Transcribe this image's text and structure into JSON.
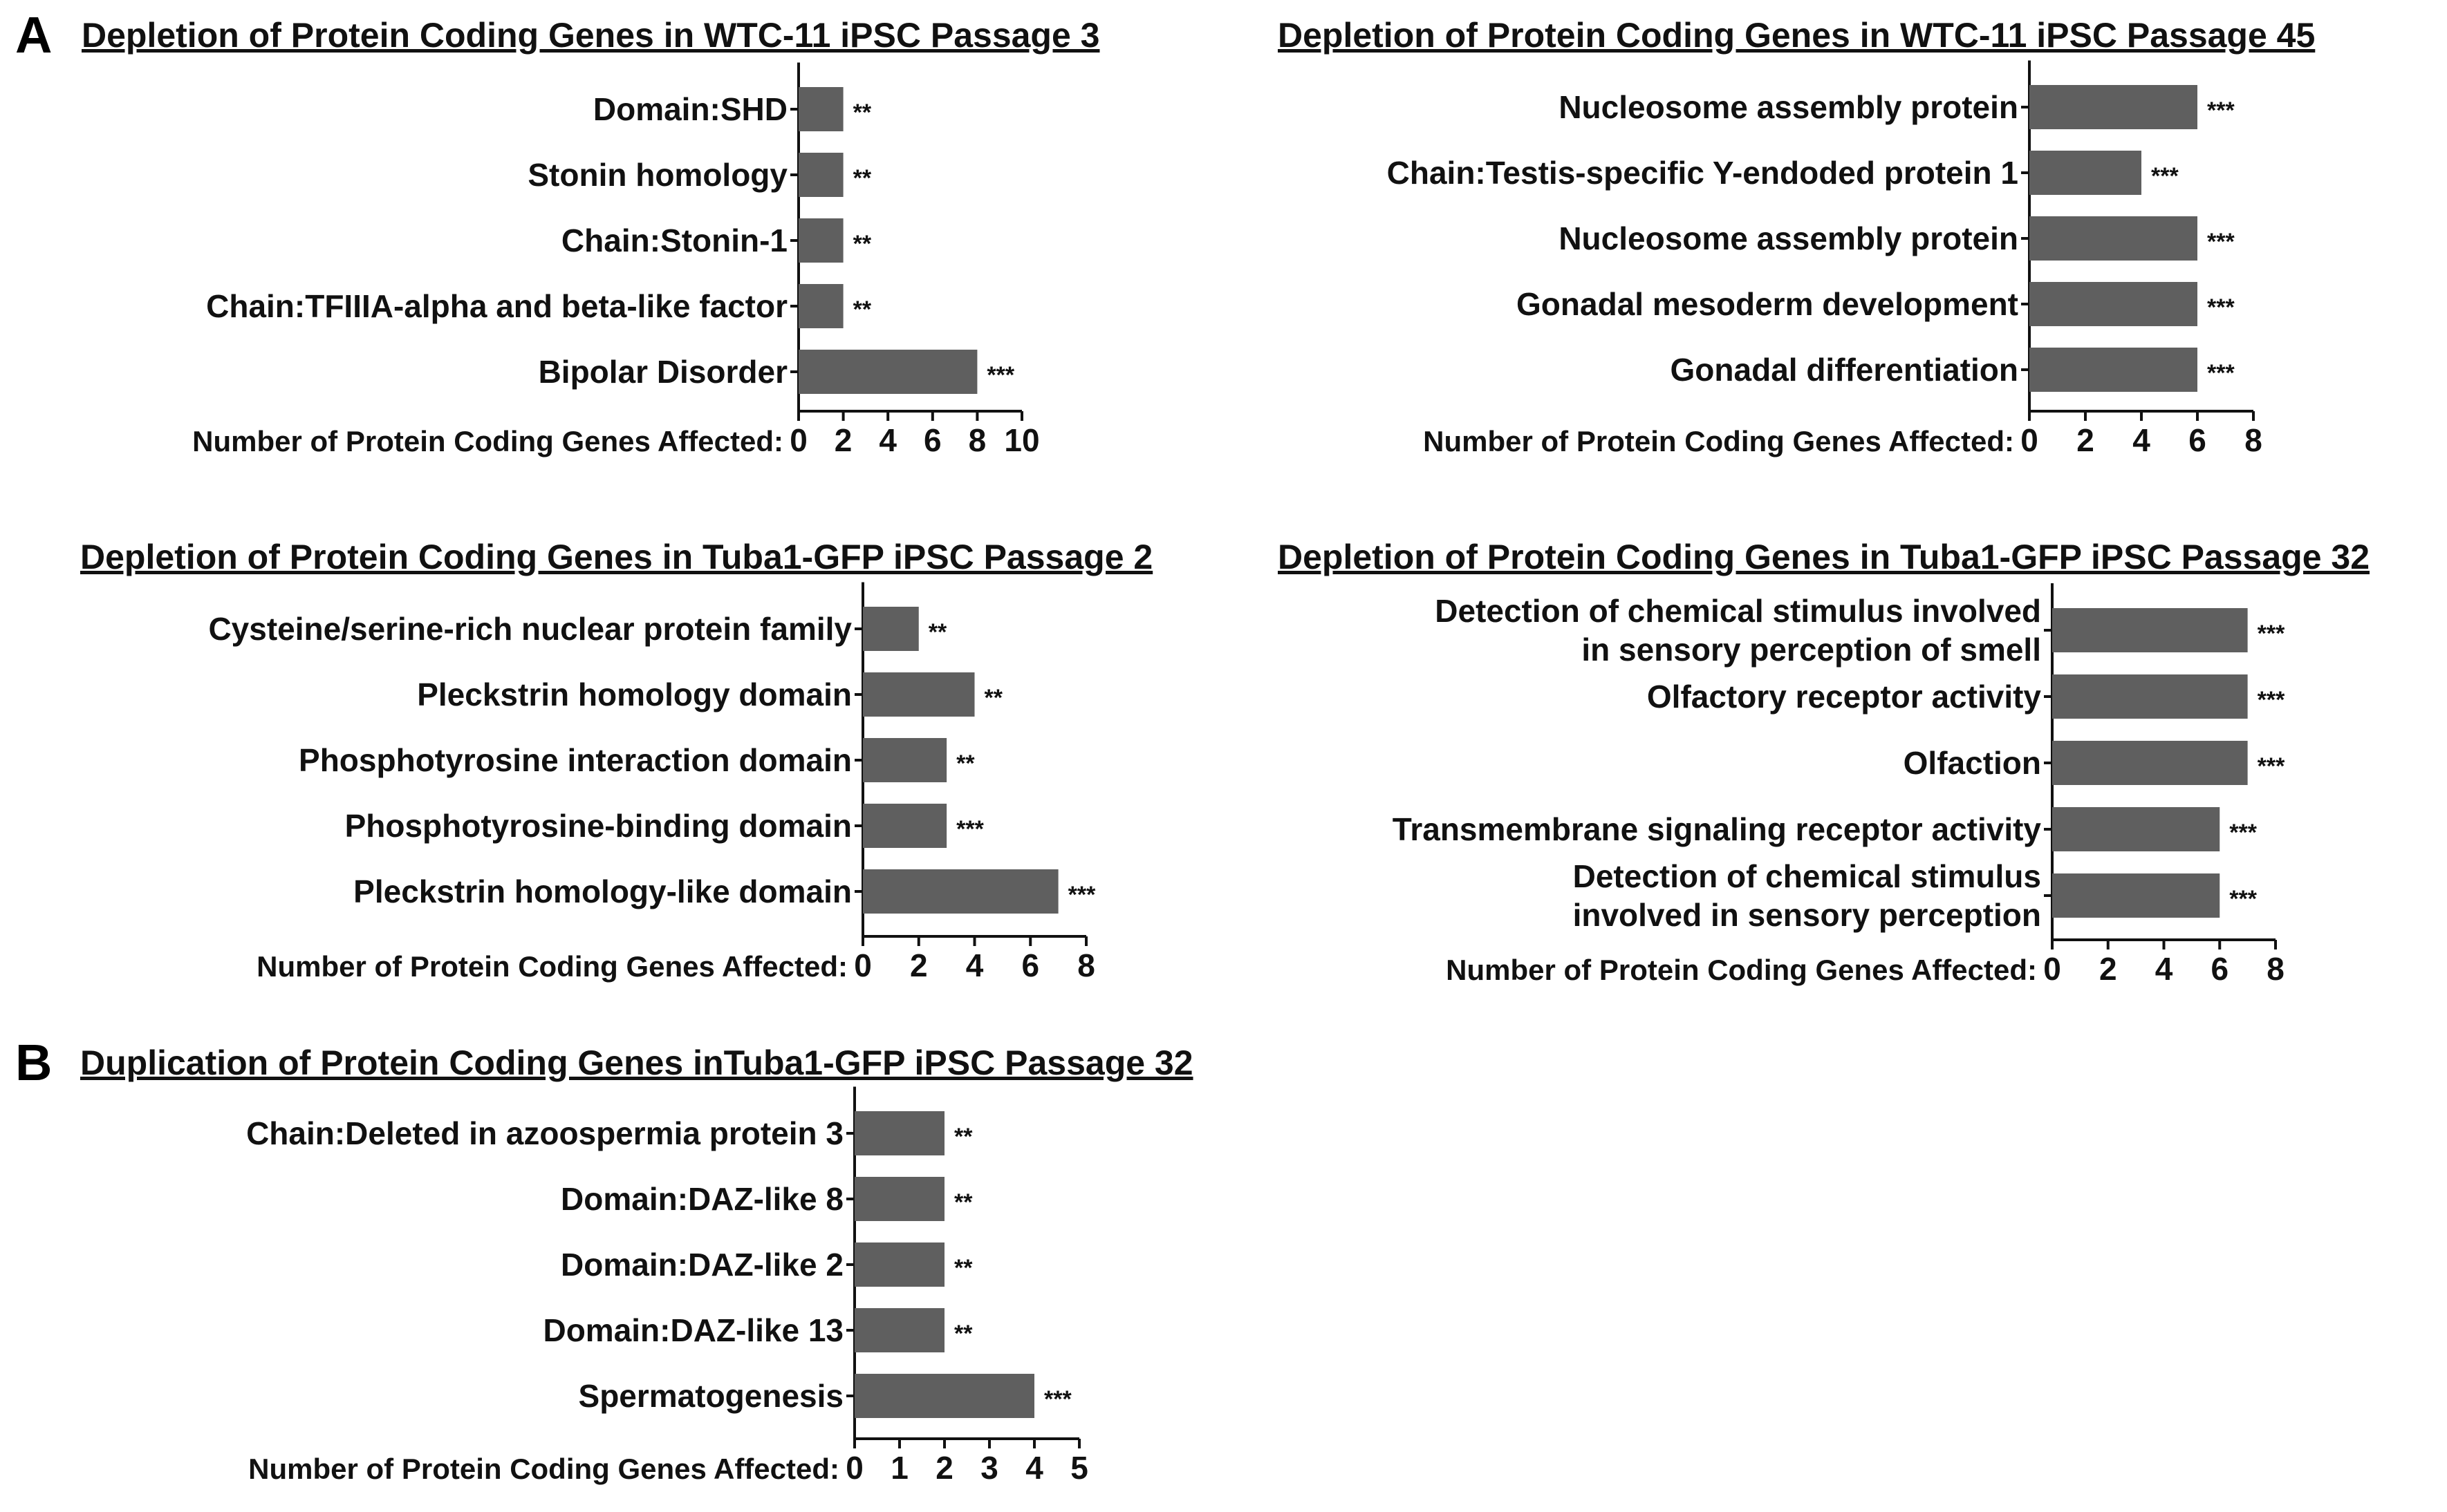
{
  "figure": {
    "panel_a_label": "A",
    "panel_b_label": "B",
    "bar_color": "#5f5f5f",
    "axis_color": "#111111"
  },
  "chart_data": [
    {
      "type": "bar",
      "orientation": "horizontal",
      "title": "Depletion of Protein Coding Genes in WTC-11 iPSC Passage 3",
      "xlabel": "Number of Protein Coding Genes Affected:",
      "categories": [
        "Domain:SHD",
        "Stonin homology",
        "Chain:Stonin-1",
        "Chain:TFIIIA-alpha and beta-like factor",
        "Bipolar Disorder"
      ],
      "values": [
        2,
        2,
        2,
        2,
        8
      ],
      "significance": [
        "**",
        "**",
        "**",
        "**",
        "***"
      ],
      "xlim": [
        0,
        10
      ],
      "xticks": [
        "0",
        "2",
        "4",
        "6",
        "8",
        "10"
      ]
    },
    {
      "type": "bar",
      "orientation": "horizontal",
      "title": "Depletion of Protein Coding Genes in WTC-11 iPSC Passage 45",
      "xlabel": "Number of Protein Coding Genes Affected:",
      "categories": [
        "Nucleosome assembly protein",
        "Chain:Testis-specific Y-endoded protein 1",
        "Nucleosome assembly protein",
        "Gonadal mesoderm development",
        "Gonadal differentiation"
      ],
      "values": [
        6,
        4,
        6,
        6,
        6
      ],
      "significance": [
        "***",
        "***",
        "***",
        "***",
        "***"
      ],
      "xlim": [
        0,
        8
      ],
      "xticks": [
        "0",
        "2",
        "4",
        "6",
        "8"
      ]
    },
    {
      "type": "bar",
      "orientation": "horizontal",
      "title": "Depletion of Protein Coding Genes in Tuba1-GFP iPSC Passage 2",
      "xlabel": "Number of Protein Coding Genes Affected:",
      "categories": [
        "Cysteine/serine-rich nuclear protein family",
        "Pleckstrin homology domain",
        "Phosphotyrosine interaction domain",
        "Phosphotyrosine-binding domain",
        "Pleckstrin homology-like domain"
      ],
      "values": [
        2,
        4,
        3,
        3,
        7
      ],
      "significance": [
        "**",
        "**",
        "**",
        "***",
        "***"
      ],
      "xlim": [
        0,
        8
      ],
      "xticks": [
        "0",
        "2",
        "4",
        "6",
        "8"
      ]
    },
    {
      "type": "bar",
      "orientation": "horizontal",
      "title": "Depletion of Protein Coding Genes in Tuba1-GFP iPSC Passage 32",
      "xlabel": "Number of Protein Coding Genes Affected:",
      "categories": [
        "Detection of chemical stimulus involved|in sensory perception of smell",
        "Olfactory receptor activity",
        "Olfaction",
        "Transmembrane signaling receptor activity",
        "Detection of chemical stimulus|involved in sensory perception"
      ],
      "values": [
        7,
        7,
        7,
        6,
        6
      ],
      "significance": [
        "***",
        "***",
        "***",
        "***",
        "***"
      ],
      "xlim": [
        0,
        8
      ],
      "xticks": [
        "0",
        "2",
        "4",
        "6",
        "8"
      ]
    },
    {
      "type": "bar",
      "orientation": "horizontal",
      "title": "Duplication of Protein Coding Genes inTuba1-GFP iPSC Passage 32",
      "xlabel": "Number of Protein Coding Genes Affected:",
      "categories": [
        "Chain:Deleted in azoospermia protein 3",
        "Domain:DAZ-like 8",
        "Domain:DAZ-like 2",
        "Domain:DAZ-like 13",
        "Spermatogenesis"
      ],
      "values": [
        2,
        2,
        2,
        2,
        4
      ],
      "significance": [
        "**",
        "**",
        "**",
        "**",
        "***"
      ],
      "xlim": [
        0,
        5
      ],
      "xticks": [
        "0",
        "1",
        "2",
        "3",
        "4",
        "5"
      ]
    }
  ]
}
